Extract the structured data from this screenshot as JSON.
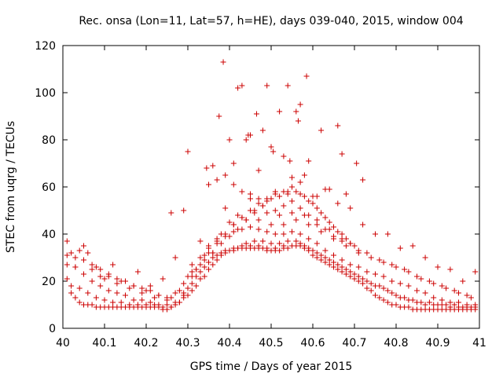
{
  "chart_data": {
    "type": "scatter",
    "title": "Rec. onsa (Lon=11, Lat=57, h=HE), days 039-040, 2015, window 004",
    "xlabel": "GPS time / Days of year 2015",
    "ylabel": "STEC from uqrg / TECUs",
    "xlim": [
      40,
      41
    ],
    "ylim": [
      0,
      120
    ],
    "xticks": [
      "40",
      "40.1",
      "40.2",
      "40.3",
      "40.4",
      "40.5",
      "40.6",
      "40.7",
      "40.8",
      "40.9",
      "41"
    ],
    "yticks": [
      "0",
      "20",
      "40",
      "60",
      "80",
      "100",
      "120"
    ],
    "grid": false,
    "marker": "plus",
    "color": "#cc0000",
    "series": [
      {
        "x": [
          40.01,
          40.02,
          40.03,
          40.04,
          40.05,
          40.06,
          40.07,
          40.08,
          40.09,
          40.1,
          40.11,
          40.12,
          40.13,
          40.14,
          40.15,
          40.16,
          40.17,
          40.18,
          40.19,
          40.2,
          40.21,
          40.22,
          40.23,
          40.24,
          40.25,
          40.26,
          40.27,
          40.28,
          40.29,
          40.3,
          40.31,
          40.32,
          40.33,
          40.34,
          40.35,
          40.36,
          40.37,
          40.38,
          40.39,
          40.4,
          40.41,
          40.42,
          40.43,
          40.44,
          40.45,
          40.46,
          40.47,
          40.48,
          40.49,
          40.5,
          40.51,
          40.52,
          40.53,
          40.54,
          40.55,
          40.56,
          40.57,
          40.58,
          40.59,
          40.6,
          40.61,
          40.62,
          40.63,
          40.64,
          40.65,
          40.66,
          40.67,
          40.68,
          40.69,
          40.7,
          40.71,
          40.72,
          40.73,
          40.74,
          40.75,
          40.76,
          40.77,
          40.78,
          40.79,
          40.8,
          40.81,
          40.82,
          40.83,
          40.84,
          40.85,
          40.86,
          40.87,
          40.88,
          40.89,
          40.9,
          40.91,
          40.92,
          40.93,
          40.94,
          40.95,
          40.96,
          40.97,
          40.98,
          40.99,
          40.01,
          40.03,
          40.05,
          40.07,
          40.09,
          40.11,
          40.13,
          40.15,
          40.17,
          40.19,
          40.21,
          40.23,
          40.25,
          40.27,
          40.29,
          40.31,
          40.33,
          40.35,
          40.37,
          40.39,
          40.41,
          40.43,
          40.45,
          40.47,
          40.49,
          40.51,
          40.53,
          40.55,
          40.57,
          40.59,
          40.61,
          40.63,
          40.65,
          40.67,
          40.69,
          40.71,
          40.73,
          40.75,
          40.77,
          40.79,
          40.81,
          40.83,
          40.85,
          40.87,
          40.89,
          40.91,
          40.93,
          40.95,
          40.97,
          40.99,
          40.02,
          40.04,
          40.06,
          40.08,
          40.1,
          40.12,
          40.14,
          40.16,
          40.18,
          40.2,
          40.22,
          40.24,
          40.26,
          40.28,
          40.3,
          40.32,
          40.34,
          40.36,
          40.38,
          40.4,
          40.42,
          40.44,
          40.46,
          40.48,
          40.5,
          40.52,
          40.54,
          40.56,
          40.58,
          40.6,
          40.62,
          40.64,
          40.66,
          40.68,
          40.7,
          40.72,
          40.74,
          40.76,
          40.78,
          40.8,
          40.82,
          40.84,
          40.86,
          40.88,
          40.9,
          40.92,
          40.94,
          40.96,
          40.98,
          40.01,
          40.03,
          40.05,
          40.07,
          40.09,
          40.11,
          40.13,
          40.15,
          40.17,
          40.19,
          40.21,
          40.23,
          40.25,
          40.27,
          40.29,
          40.31,
          40.33,
          40.35,
          40.37,
          40.39,
          40.41,
          40.43,
          40.45,
          40.47,
          40.49,
          40.51,
          40.53,
          40.55,
          40.57,
          40.59,
          40.61,
          40.63,
          40.65,
          40.67,
          40.69,
          40.71,
          40.73,
          40.75,
          40.77,
          40.79,
          40.81,
          40.83,
          40.85,
          40.87,
          40.89,
          40.91,
          40.93,
          40.95,
          40.97,
          40.99,
          40.02,
          40.05,
          40.08,
          40.11,
          40.14,
          40.17,
          40.2,
          40.23,
          40.26,
          40.29,
          40.32,
          40.35,
          40.38,
          40.41,
          40.44,
          40.47,
          40.5,
          40.53,
          40.56,
          40.59,
          40.62,
          40.65,
          40.68,
          40.71,
          40.74,
          40.77,
          40.8,
          40.83,
          40.86,
          40.89,
          40.92,
          40.95,
          40.98,
          40.01,
          40.04,
          40.07,
          40.1,
          40.13,
          40.16,
          40.19,
          40.22,
          40.25,
          40.28,
          40.31,
          40.34,
          40.37,
          40.4,
          40.43,
          40.46,
          40.49,
          40.52,
          40.55,
          40.58,
          40.61,
          40.64,
          40.67,
          40.7,
          40.73,
          40.76,
          40.79,
          40.82,
          40.85,
          40.88,
          40.91,
          40.94,
          40.97,
          40.06,
          40.12,
          40.18,
          40.24,
          40.3,
          40.36,
          40.42,
          40.48,
          40.54,
          40.6,
          40.66,
          40.72,
          40.78,
          40.84,
          40.9,
          40.96,
          40.03,
          40.09,
          40.15,
          40.21,
          40.27,
          40.33,
          40.39,
          40.45,
          40.51,
          40.57,
          40.63,
          40.69,
          40.75,
          40.81,
          40.87,
          40.93,
          40.99,
          40.31,
          40.33,
          40.35,
          40.37,
          40.39,
          40.41,
          40.43,
          40.45,
          40.47,
          40.49,
          40.51,
          40.53,
          40.55,
          40.57,
          40.59,
          40.61,
          40.63,
          40.65,
          40.67,
          40.69,
          40.32,
          40.34,
          40.36,
          40.38,
          40.4,
          40.42,
          40.44,
          40.46,
          40.48,
          40.5,
          40.52,
          40.54,
          40.56,
          40.58,
          40.6,
          40.62,
          40.64,
          40.66,
          40.68,
          40.385,
          40.42,
          40.43,
          40.49,
          40.54,
          40.585,
          40.465,
          40.57,
          40.56,
          40.375,
          40.445,
          40.565,
          40.62,
          40.66,
          40.4,
          40.48,
          40.52,
          40.45,
          40.44,
          40.505,
          40.545,
          40.59,
          40.67,
          40.705,
          40.72,
          40.36,
          40.345,
          40.3,
          40.29,
          40.26,
          40.5,
          40.41,
          40.47,
          40.55,
          40.58,
          40.53,
          40.61,
          40.64,
          40.68,
          40.35,
          40.37,
          40.39,
          40.41,
          40.43,
          40.45,
          40.47,
          40.49,
          40.51,
          40.53,
          40.55,
          40.57,
          40.59,
          40.61,
          40.63,
          40.65,
          40.67,
          40.69,
          40.71
        ],
        "y": [
          21,
          15,
          13,
          11,
          10,
          10,
          10,
          9,
          9,
          9,
          9,
          9,
          9,
          9,
          9,
          9,
          9,
          9,
          9,
          9,
          9,
          9,
          9,
          8,
          8,
          9,
          10,
          11,
          14,
          17,
          19,
          22,
          24,
          26,
          28,
          30,
          31,
          32,
          32,
          33,
          33,
          34,
          34,
          34,
          34,
          34,
          34,
          34,
          33,
          33,
          33,
          33,
          34,
          34,
          35,
          35,
          35,
          34,
          33,
          31,
          30,
          29,
          28,
          27,
          26,
          25,
          24,
          23,
          22,
          21,
          20,
          19,
          17,
          16,
          14,
          13,
          12,
          11,
          10,
          10,
          9,
          9,
          9,
          8,
          8,
          8,
          8,
          8,
          8,
          8,
          8,
          8,
          8,
          8,
          8,
          8,
          8,
          8,
          8,
          27,
          26,
          23,
          20,
          18,
          16,
          15,
          14,
          12,
          12,
          11,
          10,
          10,
          11,
          13,
          16,
          21,
          25,
          29,
          33,
          34,
          35,
          35,
          35,
          34,
          34,
          35,
          35,
          36,
          34,
          32,
          30,
          28,
          26,
          24,
          22,
          20,
          18,
          17,
          15,
          13,
          12,
          11,
          10,
          10,
          10,
          9,
          9,
          9,
          9,
          18,
          17,
          15,
          13,
          12,
          11,
          11,
          10,
          10,
          10,
          10,
          9,
          9,
          11,
          14,
          18,
          22,
          27,
          31,
          33,
          34,
          36,
          37,
          37,
          36,
          36,
          37,
          37,
          35,
          33,
          31,
          29,
          27,
          25,
          23,
          21,
          19,
          18,
          16,
          14,
          13,
          12,
          11,
          11,
          10,
          10,
          10,
          9,
          9,
          31,
          30,
          29,
          27,
          25,
          23,
          21,
          20,
          18,
          17,
          16,
          14,
          13,
          15,
          19,
          22,
          27,
          32,
          36,
          39,
          41,
          42,
          43,
          42,
          41,
          40,
          40,
          41,
          40,
          38,
          36,
          33,
          31,
          29,
          27,
          26,
          24,
          23,
          22,
          20,
          19,
          18,
          16,
          15,
          13,
          12,
          11,
          11,
          10,
          10,
          32,
          35,
          26,
          22,
          20,
          18,
          16,
          14,
          13,
          15,
          25,
          35,
          40,
          44,
          46,
          46,
          44,
          44,
          46,
          44,
          41,
          38,
          35,
          32,
          30,
          28,
          26,
          24,
          21,
          19,
          17,
          15,
          13,
          37,
          33,
          25,
          21,
          19,
          17,
          15,
          13,
          12,
          16,
          24,
          31,
          38,
          45,
          47,
          50,
          49,
          48,
          49,
          48,
          46,
          42,
          38,
          35,
          32,
          29,
          27,
          25,
          22,
          20,
          18,
          16,
          14,
          32,
          27,
          24,
          21,
          22,
          32,
          48,
          52,
          57,
          56,
          53,
          44,
          40,
          35,
          26,
          20,
          26,
          22,
          20,
          18,
          30,
          37,
          51,
          55,
          58,
          62,
          59,
          51,
          40,
          34,
          30,
          25,
          24,
          27,
          30,
          34,
          37,
          40,
          44,
          47,
          50,
          53,
          55,
          57,
          58,
          60,
          57,
          54,
          51,
          47,
          43,
          40,
          36,
          25,
          29,
          32,
          36,
          39,
          42,
          46,
          49,
          52,
          55,
          56,
          58,
          58,
          56,
          53,
          49,
          45,
          41,
          38,
          113,
          102,
          103,
          103,
          103,
          107,
          91,
          95,
          92,
          90,
          82,
          88,
          84,
          86,
          80,
          84,
          92,
          82,
          80,
          75,
          71,
          71,
          74,
          70,
          63,
          69,
          68,
          75,
          50,
          49,
          77,
          70,
          67,
          64,
          65,
          73,
          56,
          59,
          57,
          61,
          63,
          65,
          61,
          58,
          57,
          55,
          54,
          50,
          52,
          54,
          51,
          48,
          44,
          42,
          39,
          37,
          36,
          33
        ]
      }
    ]
  }
}
